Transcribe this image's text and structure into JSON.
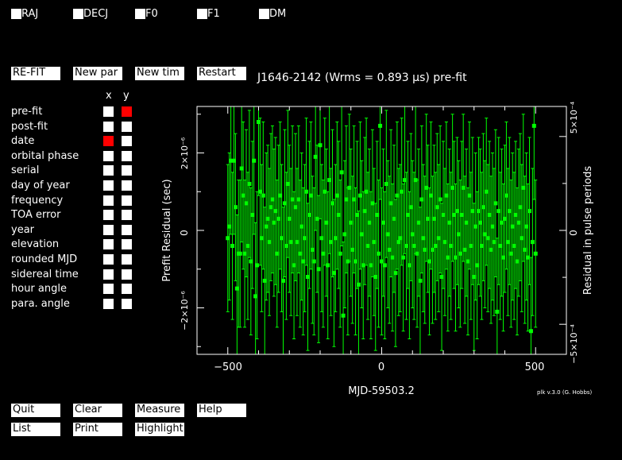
{
  "fit_params": [
    {
      "label": "RAJ"
    },
    {
      "label": "DECJ"
    },
    {
      "label": "F0"
    },
    {
      "label": "F1"
    },
    {
      "label": "DM"
    }
  ],
  "top_buttons": {
    "refit": "RE-FIT",
    "new_par": "New par",
    "new_tim": "New tim",
    "restart": "Restart"
  },
  "plot_title": "J1646-2142 (Wrms = 0.893 μs) pre-fit",
  "axis_selector": {
    "x_header": "x",
    "y_header": "y",
    "rows": [
      {
        "label": "pre-fit",
        "x": false,
        "y": true
      },
      {
        "label": "post-fit",
        "x": false,
        "y": false
      },
      {
        "label": "date",
        "x": true,
        "y": false
      },
      {
        "label": "orbital phase",
        "x": false,
        "y": false
      },
      {
        "label": "serial",
        "x": false,
        "y": false
      },
      {
        "label": "day of year",
        "x": false,
        "y": false
      },
      {
        "label": "frequency",
        "x": false,
        "y": false
      },
      {
        "label": "TOA error",
        "x": false,
        "y": false
      },
      {
        "label": "year",
        "x": false,
        "y": false
      },
      {
        "label": "elevation",
        "x": false,
        "y": false
      },
      {
        "label": "rounded MJD",
        "x": false,
        "y": false
      },
      {
        "label": "sidereal time",
        "x": false,
        "y": false
      },
      {
        "label": "hour angle",
        "x": false,
        "y": false
      },
      {
        "label": "para. angle",
        "x": false,
        "y": false
      }
    ]
  },
  "bottom_buttons": {
    "quit": "Quit",
    "clear": "Clear",
    "measure": "Measure",
    "help": "Help",
    "list": "List",
    "print": "Print",
    "highlight": "Highlight"
  },
  "credit": "plk v.3.0 (G. Hobbs)",
  "colors": {
    "points": "#00ff00",
    "selected": "#ff0000",
    "background": "#000000",
    "foreground": "#ffffff"
  },
  "chart_data": {
    "type": "scatter",
    "xlabel": "MJD-59503.2",
    "ylabel": "Prefit Residual (sec)",
    "ylabel_right": "Residual in pulse periods",
    "x_ticks": [
      "−500",
      "0",
      "500"
    ],
    "y_ticks": [
      "−2×10⁻⁶",
      "0",
      "2×10⁻⁶"
    ],
    "y_ticks_right": [
      "−5×10⁻⁴",
      "0",
      "5×10⁻⁴"
    ],
    "xlim": [
      -600,
      600
    ],
    "ylim": [
      -3.2e-06,
      3.2e-06
    ],
    "y_error": 1.9e-06,
    "points": [
      [
        -500,
        -0.2
      ],
      [
        -495,
        0.1
      ],
      [
        -490,
        1.8
      ],
      [
        -485,
        -0.4
      ],
      [
        -480,
        1.8
      ],
      [
        -475,
        0.6
      ],
      [
        -470,
        -1.5
      ],
      [
        -465,
        -0.6
      ],
      [
        -460,
        -0.6
      ],
      [
        -455,
        1.6
      ],
      [
        -450,
        0.9
      ],
      [
        -445,
        -0.6
      ],
      [
        -440,
        0.7
      ],
      [
        -435,
        -0.4
      ],
      [
        -430,
        1.2
      ],
      [
        -425,
        -0.8
      ],
      [
        -420,
        0.4
      ],
      [
        -415,
        1.8
      ],
      [
        -410,
        -1.7
      ],
      [
        -405,
        -0.9
      ],
      [
        -400,
        2.8
      ],
      [
        -395,
        1.0
      ],
      [
        -390,
        -0.2
      ],
      [
        -385,
        0.9
      ],
      [
        -380,
        -1.3
      ],
      [
        -375,
        0.1
      ],
      [
        -370,
        0.3
      ],
      [
        -365,
        -0.3
      ],
      [
        -360,
        0.6
      ],
      [
        -355,
        0.8
      ],
      [
        -350,
        0.2
      ],
      [
        -345,
        0.5
      ],
      [
        -340,
        -0.6
      ],
      [
        -335,
        0.3
      ],
      [
        -330,
        0.9
      ],
      [
        -325,
        -0.2
      ],
      [
        -320,
        -1.3
      ],
      [
        -315,
        0.7
      ],
      [
        -310,
        -0.4
      ],
      [
        -305,
        1.2
      ],
      [
        -300,
        0.3
      ],
      [
        -295,
        -0.3
      ],
      [
        -290,
        0.8
      ],
      [
        -285,
        -0.9
      ],
      [
        -280,
        0.6
      ],
      [
        -275,
        -0.3
      ],
      [
        -270,
        0.8
      ],
      [
        -265,
        -0.6
      ],
      [
        -260,
        0.1
      ],
      [
        -255,
        -0.8
      ],
      [
        -250,
        -0.2
      ],
      [
        -245,
        1.0
      ],
      [
        -240,
        -1.2
      ],
      [
        -235,
        0.4
      ],
      [
        -230,
        0.9
      ],
      [
        -225,
        -0.5
      ],
      [
        -220,
        -0.8
      ],
      [
        -215,
        1.9
      ],
      [
        -210,
        0.3
      ],
      [
        -205,
        -1.0
      ],
      [
        -200,
        2.2
      ],
      [
        -195,
        -0.2
      ],
      [
        -190,
        -0.6
      ],
      [
        -185,
        1.0
      ],
      [
        -180,
        0.2
      ],
      [
        -175,
        -0.9
      ],
      [
        -170,
        1.3
      ],
      [
        -165,
        -0.3
      ],
      [
        -160,
        0.7
      ],
      [
        -155,
        -1.1
      ],
      [
        -150,
        -0.2
      ],
      [
        -145,
        0.9
      ],
      [
        -140,
        0.4
      ],
      [
        -135,
        -0.6
      ],
      [
        -130,
        1.5
      ],
      [
        -125,
        -2.2
      ],
      [
        -120,
        -0.1
      ],
      [
        -115,
        0.8
      ],
      [
        -110,
        -0.8
      ],
      [
        -105,
        1.1
      ],
      [
        -100,
        0.2
      ],
      [
        -95,
        -0.5
      ],
      [
        -90,
        0.8
      ],
      [
        -85,
        -0.8
      ],
      [
        -80,
        0.4
      ],
      [
        -75,
        -1.4
      ],
      [
        -70,
        0.9
      ],
      [
        -65,
        -0.1
      ],
      [
        -60,
        -0.9
      ],
      [
        -55,
        0.5
      ],
      [
        -50,
        1.0
      ],
      [
        -45,
        -0.4
      ],
      [
        -40,
        0.2
      ],
      [
        -35,
        -0.9
      ],
      [
        -30,
        0.7
      ],
      [
        -25,
        -0.3
      ],
      [
        -20,
        -1.2
      ],
      [
        -15,
        0.4
      ],
      [
        -10,
        -0.6
      ],
      [
        -5,
        2.7
      ],
      [
        0,
        -0.8
      ],
      [
        5,
        0.2
      ],
      [
        10,
        -0.9
      ],
      [
        15,
        1.2
      ],
      [
        20,
        -0.1
      ],
      [
        25,
        -0.5
      ],
      [
        30,
        0.7
      ],
      [
        35,
        -0.7
      ],
      [
        40,
        0.3
      ],
      [
        45,
        -1.1
      ],
      [
        50,
        0.9
      ],
      [
        55,
        -0.3
      ],
      [
        60,
        -0.2
      ],
      [
        65,
        1.0
      ],
      [
        70,
        -0.7
      ],
      [
        75,
        1.3
      ],
      [
        80,
        -0.4
      ],
      [
        85,
        0.4
      ],
      [
        90,
        -0.9
      ],
      [
        95,
        0.6
      ],
      [
        100,
        -0.1
      ],
      [
        105,
        -0.4
      ],
      [
        110,
        1.3
      ],
      [
        115,
        -0.6
      ],
      [
        120,
        0.2
      ],
      [
        125,
        -1.3
      ],
      [
        130,
        0.8
      ],
      [
        135,
        -0.2
      ],
      [
        140,
        -0.5
      ],
      [
        145,
        1.1
      ],
      [
        150,
        0.3
      ],
      [
        155,
        -0.8
      ],
      [
        160,
        0.9
      ],
      [
        165,
        -0.5
      ],
      [
        170,
        0.3
      ],
      [
        175,
        -0.4
      ],
      [
        180,
        0.6
      ],
      [
        185,
        -0.2
      ],
      [
        190,
        0.8
      ],
      [
        195,
        -1.2
      ],
      [
        200,
        0.4
      ],
      [
        205,
        -0.3
      ],
      [
        210,
        0.9
      ],
      [
        215,
        -0.7
      ],
      [
        220,
        0.2
      ],
      [
        225,
        -0.4
      ],
      [
        230,
        1.1
      ],
      [
        235,
        0.4
      ],
      [
        240,
        -0.7
      ],
      [
        245,
        0.5
      ],
      [
        250,
        -0.1
      ],
      [
        255,
        -0.6
      ],
      [
        260,
        0.4
      ],
      [
        265,
        1.1
      ],
      [
        270,
        -0.5
      ],
      [
        275,
        0.2
      ],
      [
        280,
        -0.8
      ],
      [
        285,
        0.9
      ],
      [
        290,
        -0.4
      ],
      [
        295,
        0.5
      ],
      [
        300,
        -1.2
      ],
      [
        305,
        0.1
      ],
      [
        310,
        -0.9
      ],
      [
        315,
        0.5
      ],
      [
        320,
        0.2
      ],
      [
        325,
        -0.4
      ],
      [
        330,
        0.6
      ],
      [
        335,
        -0.1
      ],
      [
        340,
        1.0
      ],
      [
        345,
        -0.2
      ],
      [
        350,
        0.4
      ],
      [
        355,
        -0.5
      ],
      [
        360,
        0.1
      ],
      [
        365,
        -0.3
      ],
      [
        370,
        0.7
      ],
      [
        375,
        -2.1
      ],
      [
        380,
        0.5
      ],
      [
        385,
        -0.4
      ],
      [
        390,
        0.2
      ],
      [
        395,
        -0.7
      ],
      [
        400,
        0.3
      ],
      [
        405,
        0.9
      ],
      [
        410,
        -0.3
      ],
      [
        415,
        0.5
      ],
      [
        420,
        -0.6
      ],
      [
        425,
        0.1
      ],
      [
        430,
        -0.4
      ],
      [
        435,
        0.4
      ],
      [
        440,
        -0.8
      ],
      [
        445,
        0.2
      ],
      [
        450,
        0.6
      ],
      [
        455,
        -0.2
      ],
      [
        460,
        1.1
      ],
      [
        465,
        -0.5
      ],
      [
        470,
        0.1
      ],
      [
        475,
        -0.7
      ],
      [
        480,
        0.5
      ],
      [
        485,
        -2.6
      ],
      [
        490,
        -0.3
      ],
      [
        495,
        2.7
      ],
      [
        500,
        -0.6
      ]
    ]
  }
}
